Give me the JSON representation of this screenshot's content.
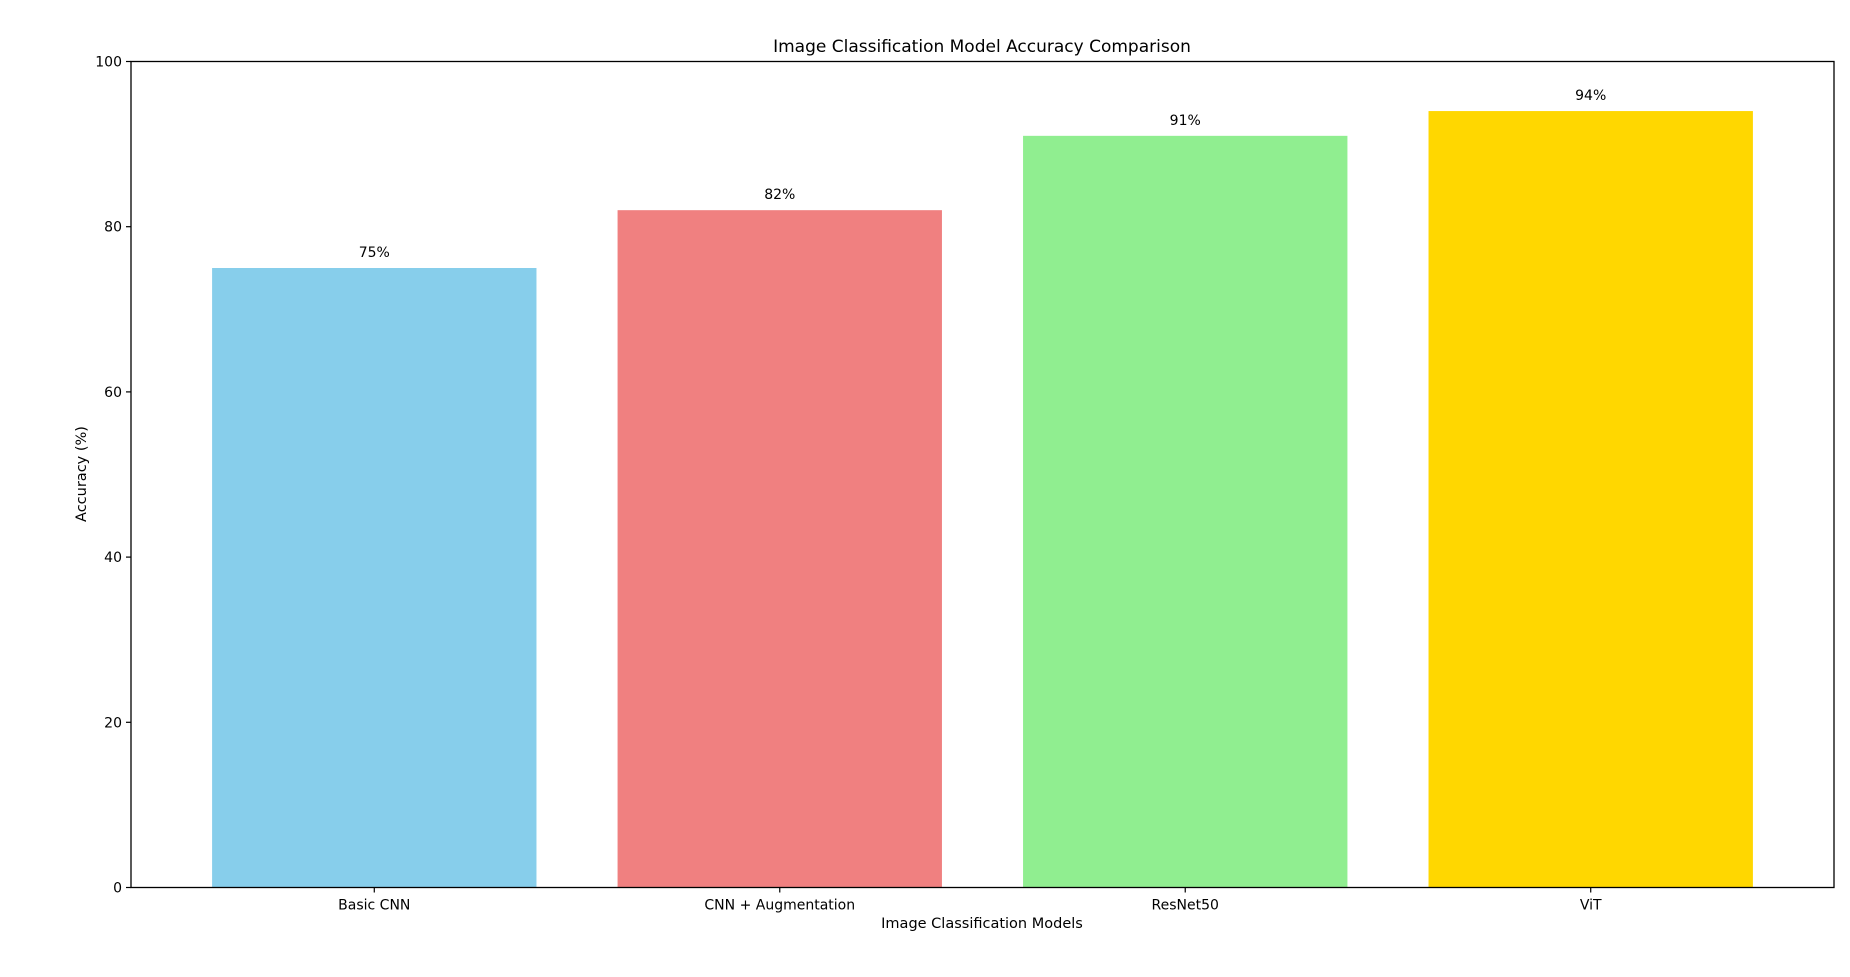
{
  "chart_data": {
    "type": "bar",
    "title": "Image Classification Model Accuracy Comparison",
    "xlabel": "Image Classification Models",
    "ylabel": "Accuracy (%)",
    "categories": [
      "Basic CNN",
      "CNN + Augmentation",
      "ResNet50",
      "ViT"
    ],
    "values": [
      75,
      82,
      91,
      94
    ],
    "value_labels": [
      "75%",
      "82%",
      "91%",
      "94%"
    ],
    "colors": [
      "#87CEEB",
      "#F08080",
      "#90EE90",
      "#FFD700"
    ],
    "ylim": [
      0,
      100
    ],
    "yticks": [
      0,
      20,
      40,
      60,
      80,
      100
    ],
    "ytick_labels": [
      "0",
      "20",
      "40",
      "60",
      "80",
      "100"
    ],
    "grid": false,
    "legend": "none"
  }
}
